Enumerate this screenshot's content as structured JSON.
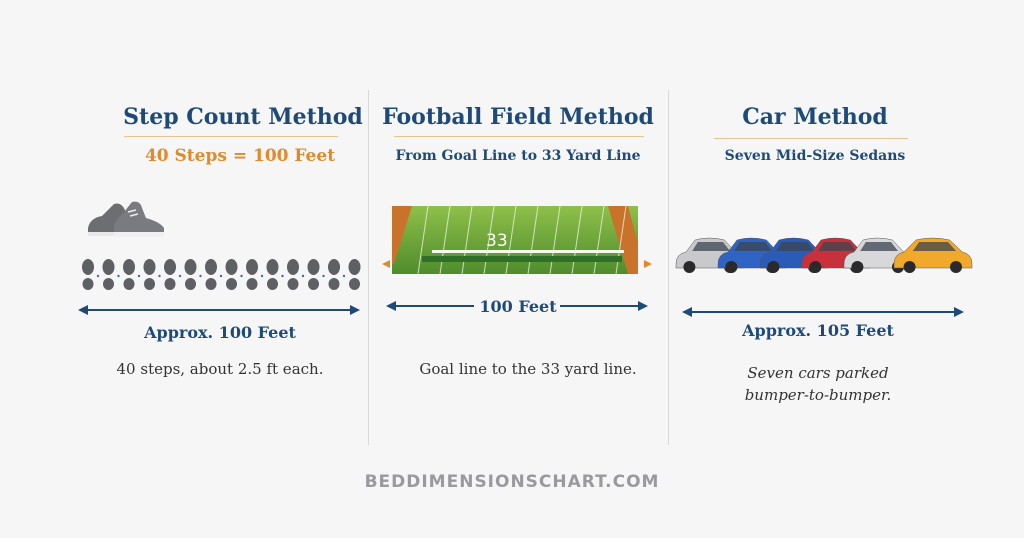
{
  "panels": [
    {
      "title": "Step Count Method",
      "subtitle": "40 Steps = 100 Feet",
      "measurement": "Approx. 100 Feet",
      "note": "40 steps, about 2.5 ft each."
    },
    {
      "title": "Football Field Method",
      "subtitle": "From Goal Line to 33 Yard Line",
      "measurement": "100 Feet",
      "note": "Goal line to the 33 yard line.",
      "field_label": "33"
    },
    {
      "title": "Car Method",
      "subtitle": "Seven Mid-Size Sedans",
      "measurement": "Approx. 105 Feet",
      "note_line1": "Seven cars parked",
      "note_line2": "bumper-to-bumper.",
      "car_colors": [
        "#c9c9cc",
        "#2f63c4",
        "#2a5bb8",
        "#c8313b",
        "#d8d8da",
        "#f0a92a"
      ]
    }
  ],
  "footer": "BEDDIMENSIONSCHART.COM",
  "colors": {
    "navy": "#1e4a78",
    "orange": "#e08a2c",
    "field_green": "#6aa83a"
  }
}
